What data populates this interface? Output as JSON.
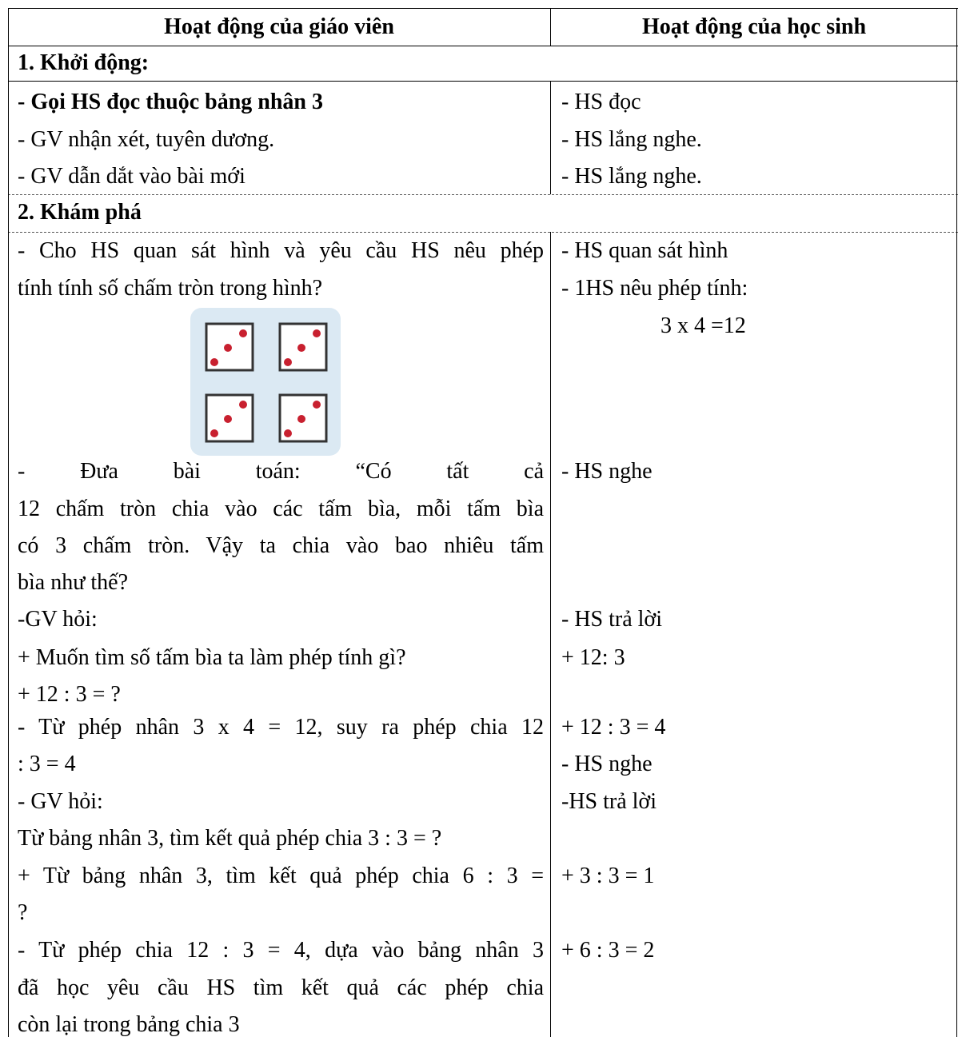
{
  "table": {
    "header": [
      "Hoạt động của giáo viên",
      "Hoạt động của học sinh"
    ],
    "sections": [
      {
        "title": "1. Khởi động:",
        "teacher": [
          "- Gọi HS đọc thuộc bảng nhân 3",
          "- GV nhận xét, tuyên dương.",
          "- GV dẫn dắt vào bài mới"
        ],
        "student": [
          "- HS đọc",
          "- HS lắng nghe.",
          "- HS lắng nghe."
        ]
      },
      {
        "title": "2. Khám phá",
        "teacher": [
          "- Cho HS quan sát hình và yêu cầu HS nêu phép",
          "tính tính số chấm tròn trong hình?",
          "- Đưa bài toán: “Có tất cả",
          "12 chấm tròn chia vào các tấm bìa, mỗi tấm bìa",
          "có 3 chấm tròn. Vậy ta chia vào bao nhiêu tấm",
          "bìa như thế?",
          "-GV hỏi:",
          "+ Muốn tìm số tấm bìa ta làm phép tính gì?",
          "+ 12 : 3 = ?",
          "- Từ phép nhân 3 x 4 = 12, suy ra phép chia 12",
          ": 3 = 4",
          "- GV hỏi:",
          "Từ bảng nhân 3, tìm kết quả phép chia 3 : 3 = ?",
          "+ Từ bảng nhân 3, tìm kết quả phép chia 6 : 3 =",
          "?",
          "- Từ phép chia 12 : 3 = 4, dựa vào bảng nhân 3",
          "đã học yêu cầu HS tìm kết quả các phép chia",
          "còn lại trong bảng chia 3"
        ],
        "student": [
          "- HS quan sát hình",
          "- 1HS nêu phép tính:",
          "3 x 4 =12",
          "- HS nghe",
          "- HS trả lời",
          "+ 12: 3",
          "+ 12 : 3 = 4",
          "- HS nghe",
          "-HS trả lời",
          "+ 3 : 3 = 1",
          "+ 6 : 3 = 2"
        ]
      }
    ]
  }
}
